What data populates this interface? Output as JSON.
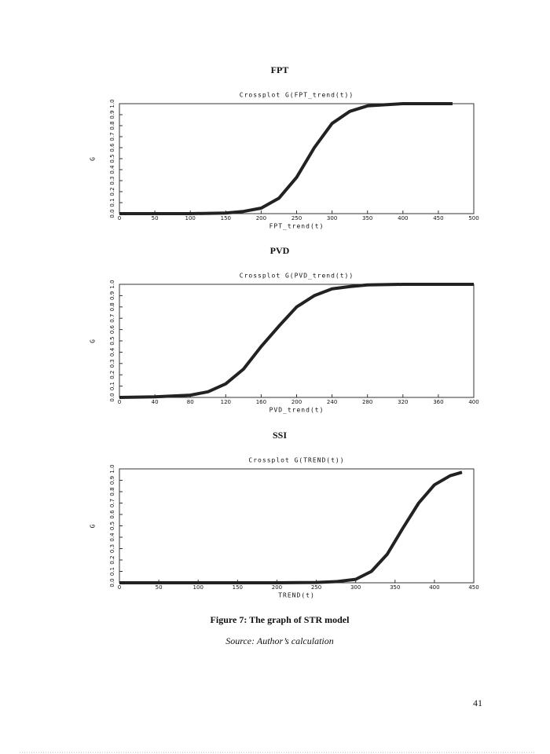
{
  "chart_data": [
    {
      "type": "line",
      "heading": "FPT",
      "title": "Crossplot G(FPT_trend(t))",
      "x_label": "FPT_trend(t)",
      "y_label": "G",
      "x": [
        0,
        50,
        100,
        150,
        175,
        200,
        225,
        250,
        275,
        300,
        325,
        350,
        375,
        400,
        450,
        470
      ],
      "values": [
        0,
        0,
        0,
        0.005,
        0.02,
        0.05,
        0.14,
        0.33,
        0.6,
        0.82,
        0.93,
        0.98,
        0.99,
        1,
        1,
        1
      ],
      "color": "#222222",
      "xlim": [
        0,
        500
      ],
      "ylim": [
        0,
        1
      ],
      "xticks": [
        0,
        50,
        100,
        150,
        200,
        250,
        300,
        350,
        400,
        450,
        500
      ],
      "yticks": [
        {
          "value": 0,
          "label": "0.0"
        },
        0.1,
        0.2,
        0.3,
        0.4,
        0.5,
        0.6,
        0.7,
        0.8,
        0.9,
        {
          "value": 1,
          "label": "1.0"
        }
      ]
    },
    {
      "type": "line",
      "heading": "PVD",
      "title": "Crossplot G(PVD_trend(t))",
      "x_label": "PVD_trend(t)",
      "y_label": "G",
      "x": [
        0,
        40,
        80,
        100,
        120,
        140,
        160,
        180,
        200,
        220,
        240,
        260,
        280,
        320,
        400
      ],
      "values": [
        0,
        0.005,
        0.02,
        0.05,
        0.12,
        0.25,
        0.45,
        0.63,
        0.8,
        0.9,
        0.96,
        0.98,
        0.995,
        1,
        1
      ],
      "color": "#222222",
      "xlim": [
        0,
        400
      ],
      "ylim": [
        0,
        1
      ],
      "xticks": [
        0,
        40,
        80,
        120,
        160,
        200,
        240,
        280,
        320,
        360,
        400
      ],
      "yticks": [
        {
          "value": 0,
          "label": "0.0"
        },
        0.1,
        0.2,
        0.3,
        0.4,
        0.5,
        0.6,
        0.7,
        0.8,
        0.9,
        {
          "value": 1,
          "label": "1.0"
        }
      ]
    },
    {
      "type": "line",
      "heading": "SSI",
      "title": "Crossplot G(TREND(t))",
      "x_label": "TREND(t)",
      "y_label": "G",
      "x": [
        0,
        100,
        200,
        250,
        275,
        300,
        320,
        340,
        360,
        380,
        400,
        420,
        435
      ],
      "values": [
        0,
        0,
        0,
        0.003,
        0.01,
        0.03,
        0.1,
        0.25,
        0.48,
        0.7,
        0.86,
        0.94,
        0.97
      ],
      "color": "#222222",
      "xlim": [
        0,
        450
      ],
      "ylim": [
        0,
        1
      ],
      "xticks": [
        0,
        50,
        100,
        150,
        200,
        250,
        300,
        350,
        400,
        450
      ],
      "yticks": [
        {
          "value": 0,
          "label": "0.0"
        },
        0.1,
        0.2,
        0.3,
        0.4,
        0.5,
        0.6,
        0.7,
        0.8,
        0.9,
        {
          "value": 1,
          "label": "1.0"
        }
      ]
    }
  ],
  "caption": "Figure  7:  The graph  of STR model",
  "source": "Source: Author’s calculation",
  "page_number": "41"
}
